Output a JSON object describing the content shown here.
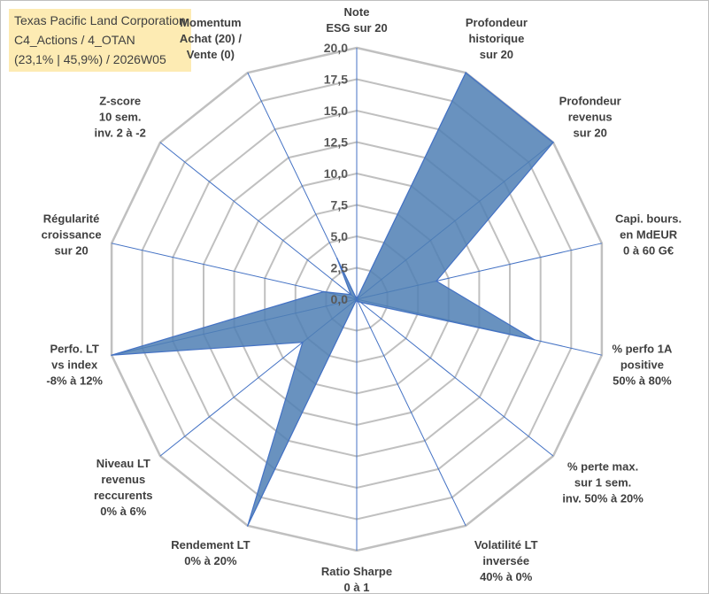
{
  "chart_data": {
    "type": "radar",
    "title_lines": [
      "Texas Pacific Land Corporation",
      "C4_Actions / 4_OTAN",
      "(23,1% | 45,9%) / 2026W05"
    ],
    "rmax": 20,
    "ticks": [
      "0,0",
      "2,5",
      "5,0",
      "7,5",
      "10,0",
      "12,5",
      "15,0",
      "17,5",
      "20,0"
    ],
    "tick_values": [
      0,
      2.5,
      5,
      7.5,
      10,
      12.5,
      15,
      17.5,
      20
    ],
    "axes": [
      {
        "label": [
          "Note",
          "ESG sur 20"
        ]
      },
      {
        "label": [
          "Profondeur",
          "historique",
          "sur 20"
        ]
      },
      {
        "label": [
          "Profondeur",
          "revenus",
          "sur 20"
        ]
      },
      {
        "label": [
          "Capi. bours.",
          "en MdEUR",
          "0 à 60 G€"
        ]
      },
      {
        "label": [
          "% perfo 1A",
          "positive",
          "50% à 80%"
        ]
      },
      {
        "label": [
          "% perte max.",
          "sur 1 sem.",
          "inv. 50% à 20%"
        ]
      },
      {
        "label": [
          "Volatilité LT",
          "inversée",
          "40% à 0%"
        ]
      },
      {
        "label": [
          "Ratio Sharpe",
          "0 à 1"
        ]
      },
      {
        "label": [
          "Rendement LT",
          "0% à 20%"
        ]
      },
      {
        "label": [
          "Niveau LT",
          "revenus",
          "reccurents",
          "0% à 6%"
        ]
      },
      {
        "label": [
          "Perfo. LT",
          "vs index",
          "-8% à 12%"
        ]
      },
      {
        "label": [
          "Régularité",
          "croissance",
          "sur 20"
        ]
      },
      {
        "label": [
          "Z-score",
          "10 sem.",
          "inv. 2 à -2"
        ]
      },
      {
        "label": [
          "Momentum",
          "Achat (20) /",
          "Vente (0)"
        ]
      }
    ],
    "values": [
      0,
      20,
      20,
      6.5,
      14.5,
      0.4,
      0.2,
      0,
      20,
      5.5,
      20,
      2.7,
      0.6,
      3.6
    ],
    "colors": {
      "fill": "#4f7fb4",
      "line": "#4472c4",
      "grid": "#c0c0c0",
      "spoke": "#4472c4"
    }
  }
}
